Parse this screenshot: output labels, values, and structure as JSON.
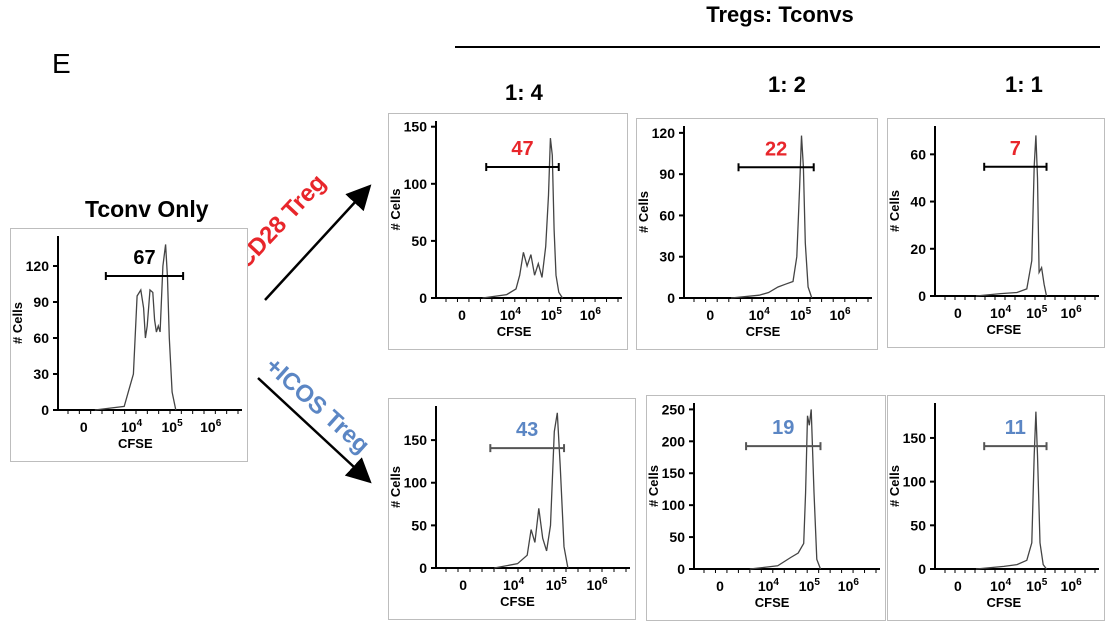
{
  "figure": {
    "panel_letter": "E",
    "header_title": "Tregs: Tconvs",
    "ratios": [
      "1: 4",
      "1: 2",
      "1: 1"
    ],
    "tconv_only_title": "Tconv Only",
    "arrow_labels": {
      "cd28": "CD28 Treg",
      "icos": "+ICOS Treg"
    },
    "colors": {
      "cd28": "#e8262b",
      "icos": "#5b86c4",
      "axis": "#000000",
      "trace": "#444444"
    }
  },
  "chart_data": [
    {
      "id": "tconv-only",
      "type": "line",
      "xlabel": "CFSE",
      "ylabel": "# Cells",
      "yticks": [
        0,
        30,
        60,
        90,
        120
      ],
      "ylim": [
        0,
        145
      ],
      "x_tick_labels": [
        "0",
        "10^4",
        "10^5",
        "10^6"
      ],
      "gate_value": "67",
      "gate_color": "black",
      "x": [
        0.2,
        0.36,
        0.41,
        0.43,
        0.45,
        0.465,
        0.475,
        0.485,
        0.5,
        0.515,
        0.525,
        0.535,
        0.545,
        0.555,
        0.57,
        0.585,
        0.595,
        0.605,
        0.62,
        0.64
      ],
      "y": [
        0,
        3,
        30,
        95,
        100,
        85,
        60,
        70,
        100,
        98,
        75,
        65,
        70,
        65,
        120,
        138,
        110,
        60,
        15,
        0
      ]
    },
    {
      "id": "cd28-1-4",
      "type": "line",
      "xlabel": "CFSE",
      "ylabel": "# Cells",
      "yticks": [
        0,
        50,
        100,
        150
      ],
      "ylim": [
        0,
        155
      ],
      "x_tick_labels": [
        "0",
        "10^4",
        "10^5",
        "10^6"
      ],
      "gate_value": "47",
      "gate_color": "cd28",
      "x": [
        0.25,
        0.38,
        0.43,
        0.45,
        0.47,
        0.49,
        0.51,
        0.53,
        0.55,
        0.57,
        0.59,
        0.605,
        0.615,
        0.625,
        0.635,
        0.645,
        0.66,
        0.68
      ],
      "y": [
        0,
        3,
        8,
        20,
        40,
        28,
        38,
        20,
        30,
        18,
        45,
        90,
        140,
        125,
        60,
        20,
        5,
        0
      ]
    },
    {
      "id": "cd28-1-2",
      "type": "line",
      "xlabel": "CFSE",
      "ylabel": "# Cells",
      "yticks": [
        0,
        30,
        60,
        90,
        120
      ],
      "ylim": [
        0,
        125
      ],
      "x_tick_labels": [
        "0",
        "10^4",
        "10^5",
        "10^6"
      ],
      "gate_value": "22",
      "gate_color": "cd28",
      "x": [
        0.25,
        0.4,
        0.45,
        0.5,
        0.54,
        0.58,
        0.6,
        0.615,
        0.625,
        0.635,
        0.645,
        0.66,
        0.68
      ],
      "y": [
        0,
        2,
        4,
        8,
        10,
        12,
        30,
        80,
        118,
        95,
        40,
        8,
        0
      ]
    },
    {
      "id": "cd28-1-1",
      "type": "line",
      "xlabel": "CFSE",
      "ylabel": "# Cells",
      "yticks": [
        0,
        20,
        40,
        60
      ],
      "ylim": [
        0,
        72
      ],
      "x_tick_labels": [
        "0",
        "10^4",
        "10^5",
        "10^6"
      ],
      "gate_value": "7",
      "gate_color": "cd28",
      "x": [
        0.25,
        0.4,
        0.5,
        0.56,
        0.59,
        0.605,
        0.615,
        0.625,
        0.635,
        0.65,
        0.665,
        0.68
      ],
      "y": [
        0,
        1,
        1.5,
        3,
        15,
        55,
        68,
        50,
        10,
        12,
        5,
        0
      ]
    },
    {
      "id": "icos-1-4",
      "type": "line",
      "xlabel": "CFSE",
      "ylabel": "# Cells",
      "yticks": [
        0,
        50,
        100,
        150
      ],
      "ylim": [
        0,
        190
      ],
      "x_tick_labels": [
        "0",
        "10^4",
        "10^5",
        "10^6"
      ],
      "gate_value": "43",
      "gate_color": "icos",
      "x": [
        0.3,
        0.42,
        0.47,
        0.49,
        0.51,
        0.53,
        0.55,
        0.57,
        0.59,
        0.61,
        0.625,
        0.64,
        0.66,
        0.68
      ],
      "y": [
        0,
        5,
        15,
        45,
        30,
        70,
        35,
        20,
        50,
        160,
        182,
        120,
        25,
        0
      ]
    },
    {
      "id": "icos-1-2",
      "type": "line",
      "xlabel": "CFSE",
      "ylabel": "# Cells",
      "yticks": [
        0,
        50,
        100,
        150,
        200,
        250
      ],
      "ylim": [
        0,
        260
      ],
      "x_tick_labels": [
        "0",
        "10^4",
        "10^5",
        "10^6"
      ],
      "gate_value": "19",
      "gate_color": "icos",
      "x": [
        0.3,
        0.45,
        0.52,
        0.56,
        0.59,
        0.6,
        0.61,
        0.62,
        0.63,
        0.645,
        0.66,
        0.68
      ],
      "y": [
        0,
        5,
        18,
        25,
        40,
        120,
        240,
        225,
        250,
        120,
        15,
        0
      ]
    },
    {
      "id": "icos-1-1",
      "type": "line",
      "xlabel": "CFSE",
      "ylabel": "# Cells",
      "yticks": [
        0,
        50,
        100,
        150
      ],
      "ylim": [
        0,
        190
      ],
      "x_tick_labels": [
        "0",
        "10^4",
        "10^5",
        "10^6"
      ],
      "gate_value": "11",
      "gate_color": "icos",
      "x": [
        0.25,
        0.42,
        0.5,
        0.56,
        0.59,
        0.605,
        0.615,
        0.625,
        0.64,
        0.66,
        0.68
      ],
      "y": [
        0,
        3,
        5,
        10,
        30,
        130,
        180,
        130,
        30,
        5,
        0
      ]
    }
  ]
}
